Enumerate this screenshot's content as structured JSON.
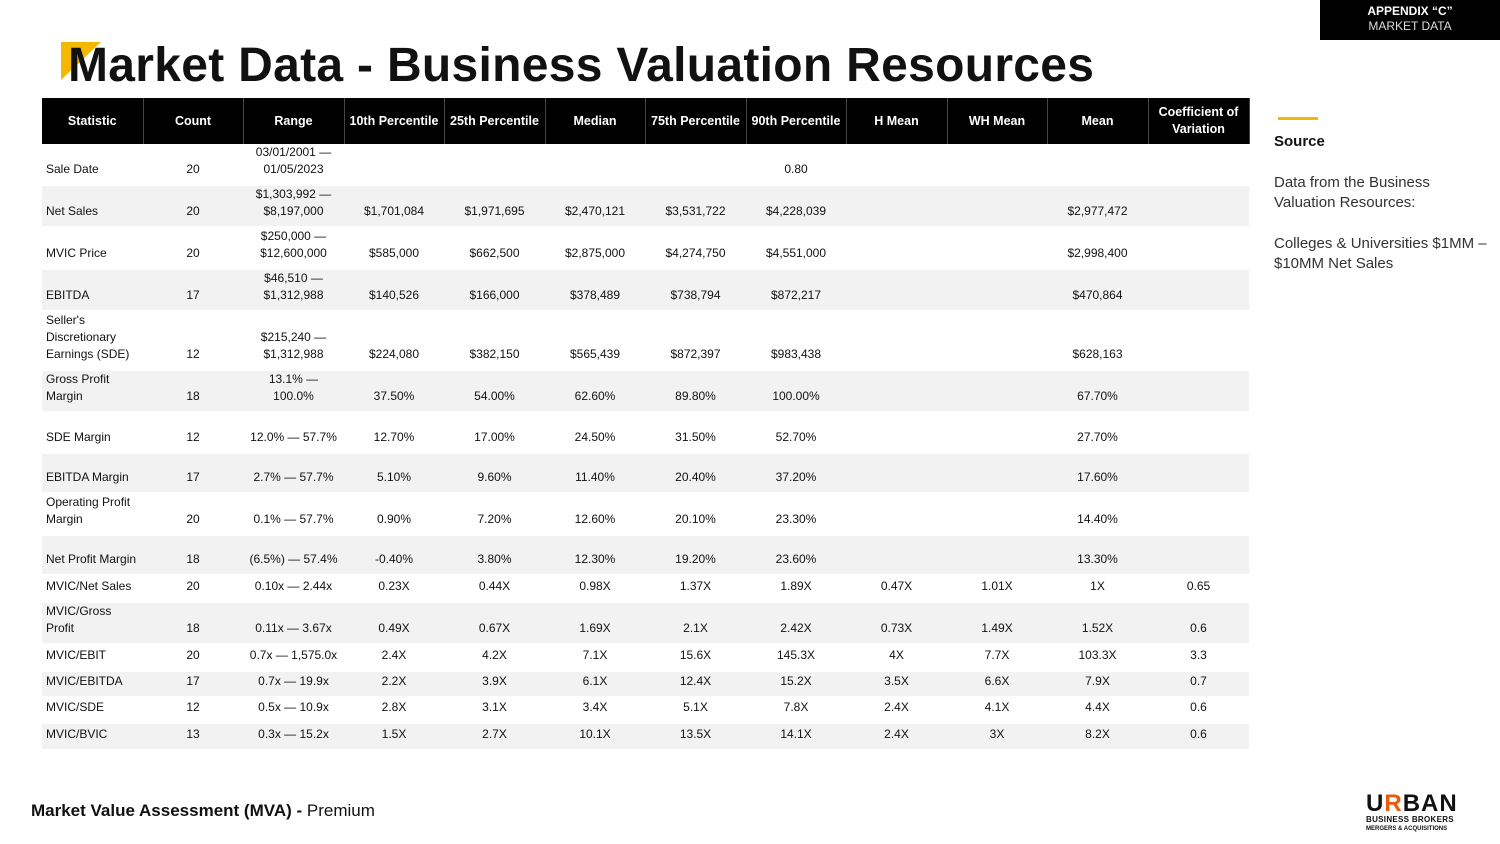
{
  "badge": {
    "line1": "APPENDIX “C”",
    "line2": "MARKET DATA"
  },
  "title": "Market Data - Business Valuation Resources",
  "colors": {
    "accent": "#f5b800",
    "header_bg": "#000000",
    "row_alt": "#f2f2f2"
  },
  "table": {
    "headers": [
      "Statistic",
      "Count",
      "Range",
      "10th Percentile",
      "25th Percentile",
      "Median",
      "75th Percentile",
      "90th Percentile",
      "H Mean",
      "WH Mean",
      "Mean",
      "Coefficient of Variation"
    ],
    "rows": [
      [
        "Sale Date",
        "20",
        "03/01/2001 — 01/05/2023",
        "",
        "",
        "",
        "",
        "0.80",
        "",
        "",
        "",
        ""
      ],
      [
        "Net Sales",
        "20",
        "$1,303,992 — $8,197,000",
        "$1,701,084",
        "$1,971,695",
        "$2,470,121",
        "$3,531,722",
        "$4,228,039",
        "",
        "",
        "$2,977,472",
        ""
      ],
      [
        "MVIC Price",
        "20",
        "$250,000 — $12,600,000",
        "$585,000",
        "$662,500",
        "$2,875,000",
        "$4,274,750",
        "$4,551,000",
        "",
        "",
        "$2,998,400",
        ""
      ],
      [
        "EBITDA",
        "17",
        "$46,510 — $1,312,988",
        "$140,526",
        "$166,000",
        "$378,489",
        "$738,794",
        "$872,217",
        "",
        "",
        "$470,864",
        ""
      ],
      [
        "Seller's Discretionary Earnings (SDE)",
        "12",
        "$215,240 — $1,312,988",
        "$224,080",
        "$382,150",
        "$565,439",
        "$872,397",
        "$983,438",
        "",
        "",
        "$628,163",
        ""
      ],
      [
        "Gross Profit Margin",
        "18",
        "13.1% — 100.0%",
        "37.50%",
        "54.00%",
        "62.60%",
        "89.80%",
        "100.00%",
        "",
        "",
        "67.70%",
        ""
      ],
      [
        "SDE Margin",
        "12",
        "12.0% — 57.7%",
        "12.70%",
        "17.00%",
        "24.50%",
        "31.50%",
        "52.70%",
        "",
        "",
        "27.70%",
        ""
      ],
      [
        "EBITDA Margin",
        "17",
        "2.7% — 57.7%",
        "5.10%",
        "9.60%",
        "11.40%",
        "20.40%",
        "37.20%",
        "",
        "",
        "17.60%",
        ""
      ],
      [
        "Operating Profit Margin",
        "20",
        "0.1% — 57.7%",
        "0.90%",
        "7.20%",
        "12.60%",
        "20.10%",
        "23.30%",
        "",
        "",
        "14.40%",
        ""
      ],
      [
        "Net Profit Margin",
        "18",
        "(6.5%) — 57.4%",
        "-0.40%",
        "3.80%",
        "12.30%",
        "19.20%",
        "23.60%",
        "",
        "",
        "13.30%",
        ""
      ],
      [
        "MVIC/Net Sales",
        "20",
        "0.10x — 2.44x",
        "0.23X",
        "0.44X",
        "0.98X",
        "1.37X",
        "1.89X",
        "0.47X",
        "1.01X",
        "1X",
        "0.65"
      ],
      [
        "MVIC/Gross Profit",
        "18",
        "0.11x — 3.67x",
        "0.49X",
        "0.67X",
        "1.69X",
        "2.1X",
        "2.42X",
        "0.73X",
        "1.49X",
        "1.52X",
        "0.6"
      ],
      [
        "MVIC/EBIT",
        "20",
        "0.7x — 1,575.0x",
        "2.4X",
        "4.2X",
        "7.1X",
        "15.6X",
        "145.3X",
        "4X",
        "7.7X",
        "103.3X",
        "3.3"
      ],
      [
        "MVIC/EBITDA",
        "17",
        "0.7x — 19.9x",
        "2.2X",
        "3.9X",
        "6.1X",
        "12.4X",
        "15.2X",
        "3.5X",
        "6.6X",
        "7.9X",
        "0.7"
      ],
      [
        "MVIC/SDE",
        "12",
        "0.5x — 10.9x",
        "2.8X",
        "3.1X",
        "3.4X",
        "5.1X",
        "7.8X",
        "2.4X",
        "4.1X",
        "4.4X",
        "0.6"
      ],
      [
        "MVIC/BVIC",
        "13",
        "0.3x — 15.2x",
        "1.5X",
        "2.7X",
        "10.1X",
        "13.5X",
        "14.1X",
        "2.4X",
        "3X",
        "8.2X",
        "0.6"
      ]
    ]
  },
  "source": {
    "heading": "Source",
    "para1": "Data from the Business Valuation Resources:",
    "para2": "Colleges & Universities $1MM – $10MM Net Sales"
  },
  "footer": {
    "bold": "Market Value Assessment (MVA) -",
    "normal": " Premium"
  },
  "logo": {
    "line1_a": "U",
    "line1_b": "R",
    "line1_c": "BAN",
    "line2": "BUSINESS BROKERS",
    "line3": "MERGERS & ACQUISITIONS"
  }
}
